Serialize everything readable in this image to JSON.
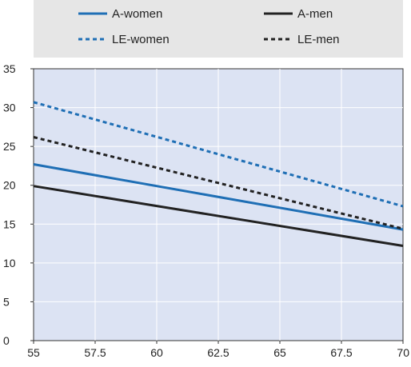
{
  "chart_data": {
    "type": "line",
    "title": "",
    "xlabel": "",
    "ylabel": "",
    "xlim": [
      55,
      70
    ],
    "ylim": [
      0,
      35
    ],
    "xticks": [
      55,
      57.5,
      60,
      62.5,
      65,
      67.5,
      70
    ],
    "xtick_labels": [
      "55",
      "57.5",
      "60",
      "62.5",
      "65",
      "67.5",
      "70"
    ],
    "yticks": [
      0,
      5,
      10,
      15,
      20,
      25,
      30,
      35
    ],
    "ytick_labels": [
      "0",
      "5",
      "10",
      "15",
      "20",
      "25",
      "30",
      "35"
    ],
    "grid": true,
    "legend_position": "top",
    "plot_background": "#dce3f3",
    "legend_background": "#e6e6e6",
    "series": [
      {
        "name": "A-women",
        "color": "#1f6fb5",
        "style": "solid",
        "x": [
          55,
          70
        ],
        "y": [
          22.7,
          14.3
        ]
      },
      {
        "name": "A-men",
        "color": "#222222",
        "style": "solid",
        "x": [
          55,
          70
        ],
        "y": [
          19.9,
          12.2
        ]
      },
      {
        "name": "LE-women",
        "color": "#1f6fb5",
        "style": "dotted",
        "x": [
          55,
          70
        ],
        "y": [
          30.7,
          17.3
        ]
      },
      {
        "name": "LE-men",
        "color": "#222222",
        "style": "dotted",
        "x": [
          55,
          70
        ],
        "y": [
          26.2,
          14.4
        ]
      }
    ]
  }
}
